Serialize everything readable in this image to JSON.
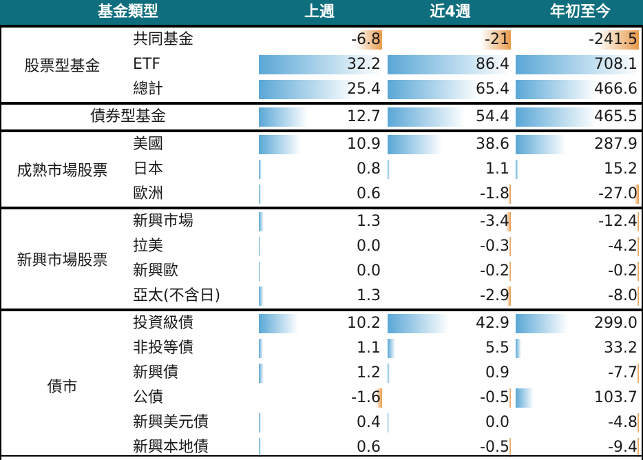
{
  "chart_data": {
    "type": "table",
    "header": {
      "category": "基金類型",
      "columns": [
        "上週",
        "近4週",
        "年初至今"
      ]
    },
    "groups": [
      {
        "name": "股票型基金",
        "rows": [
          {
            "label": "共同基金",
            "values": [
              -6.8,
              -21,
              -241.5
            ],
            "display": [
              "-6.8",
              "-21",
              "-241.5"
            ]
          },
          {
            "label": "ETF",
            "values": [
              32.2,
              86.4,
              708.1
            ],
            "display": [
              "32.2",
              "86.4",
              "708.1"
            ]
          },
          {
            "label": "總計",
            "values": [
              25.4,
              65.4,
              466.6
            ],
            "display": [
              "25.4",
              "65.4",
              "466.6"
            ]
          }
        ]
      },
      {
        "name": "",
        "rows": [
          {
            "label": "債券型基金",
            "values": [
              12.7,
              54.4,
              465.5
            ],
            "display": [
              "12.7",
              "54.4",
              "465.5"
            ]
          }
        ]
      },
      {
        "name": "成熟市場股票",
        "rows": [
          {
            "label": "美國",
            "values": [
              10.9,
              38.6,
              287.9
            ],
            "display": [
              "10.9",
              "38.6",
              "287.9"
            ]
          },
          {
            "label": "日本",
            "values": [
              0.8,
              1.1,
              15.2
            ],
            "display": [
              "0.8",
              "1.1",
              "15.2"
            ]
          },
          {
            "label": "歐洲",
            "values": [
              0.6,
              -1.8,
              -27.0
            ],
            "display": [
              "0.6",
              "-1.8",
              "-27.0"
            ]
          }
        ]
      },
      {
        "name": "新興市場股票",
        "rows": [
          {
            "label": "新興市場",
            "values": [
              1.3,
              -3.4,
              -12.4
            ],
            "display": [
              "1.3",
              "-3.4",
              "-12.4"
            ]
          },
          {
            "label": "拉美",
            "values": [
              0.0,
              -0.3,
              -4.2
            ],
            "display": [
              "0.0",
              "-0.3",
              "-4.2"
            ]
          },
          {
            "label": "新興歐",
            "values": [
              0.0,
              -0.2,
              -0.2
            ],
            "display": [
              "0.0",
              "-0.2",
              "-0.2"
            ]
          },
          {
            "label": "亞太(不含日)",
            "values": [
              1.3,
              -2.9,
              -8.0
            ],
            "display": [
              "1.3",
              "-2.9",
              "-8.0"
            ]
          }
        ]
      },
      {
        "name": "債市",
        "rows": [
          {
            "label": "投資級債",
            "values": [
              10.2,
              42.9,
              299.0
            ],
            "display": [
              "10.2",
              "42.9",
              "299.0"
            ]
          },
          {
            "label": "非投等債",
            "values": [
              1.1,
              5.5,
              33.2
            ],
            "display": [
              "1.1",
              "5.5",
              "33.2"
            ]
          },
          {
            "label": "新興債",
            "values": [
              1.2,
              0.9,
              -7.7
            ],
            "display": [
              "1.2",
              "0.9",
              "-7.7"
            ]
          },
          {
            "label": "公債",
            "values": [
              -1.6,
              -0.5,
              103.7
            ],
            "display": [
              "-1.6",
              "-0.5",
              "103.7"
            ]
          },
          {
            "label": "新興美元債",
            "values": [
              0.4,
              0.0,
              -4.8
            ],
            "display": [
              "0.4",
              "0.0",
              "-4.8"
            ]
          },
          {
            "label": "新興本地債",
            "values": [
              0.6,
              -0.5,
              -9.4
            ],
            "display": [
              "0.6",
              "-0.5",
              "-9.4"
            ]
          }
        ]
      }
    ],
    "colors": {
      "header_bg": "#0e6e7e",
      "header_text": "#ffffff",
      "positive_bar": "#5aa7d6",
      "negative_bar": "#e89a4a"
    }
  }
}
